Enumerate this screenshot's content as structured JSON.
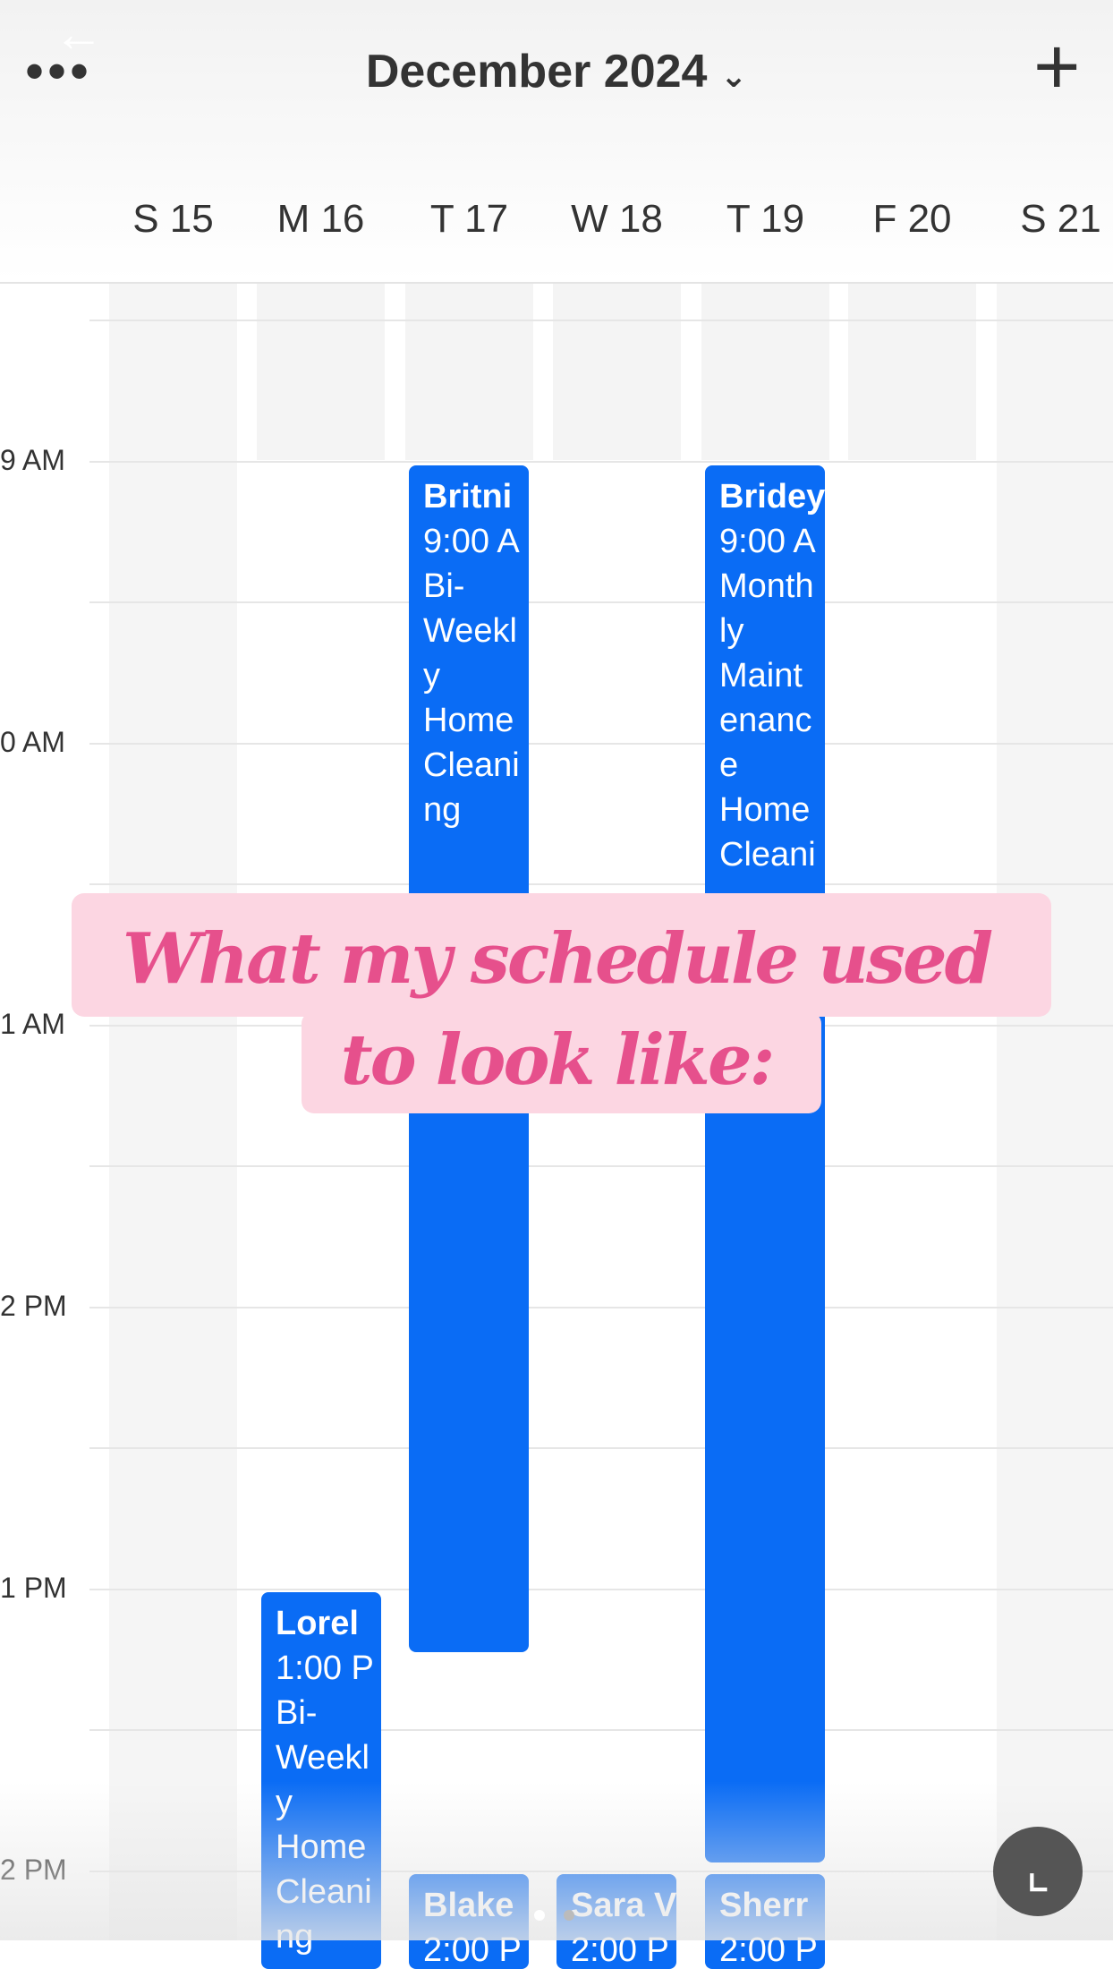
{
  "header": {
    "title": "December 2024"
  },
  "days": [
    "S 15",
    "M 16",
    "T 17",
    "W 18",
    "T 19",
    "F 20",
    "S 21"
  ],
  "times": [
    "9 AM",
    "0 AM",
    "1 AM",
    "2 PM",
    "1 PM",
    "2 PM"
  ],
  "events": [
    {
      "lines": [
        "Britni",
        "9:00 A",
        "Bi-",
        "Weekl",
        "y",
        "Home",
        "Cleani",
        "ng"
      ]
    },
    {
      "lines": [
        "Bridey",
        "9:00 A",
        "Month",
        "ly",
        "Maint",
        "enanc",
        "e",
        "Home",
        "Cleani"
      ]
    },
    {
      "lines": [
        "Lorel",
        "1:00 P",
        "Bi-",
        "Weekl",
        "y",
        "Home",
        "Cleani",
        "ng"
      ]
    },
    {
      "lines": [
        "Blake",
        "2:00 P"
      ]
    },
    {
      "lines": [
        "Sara V",
        "2:00 P"
      ]
    },
    {
      "lines": [
        "Sherr",
        "2:00 P"
      ]
    }
  ],
  "overlay": {
    "lines": [
      "What my schedule used",
      "to look like:"
    ]
  }
}
